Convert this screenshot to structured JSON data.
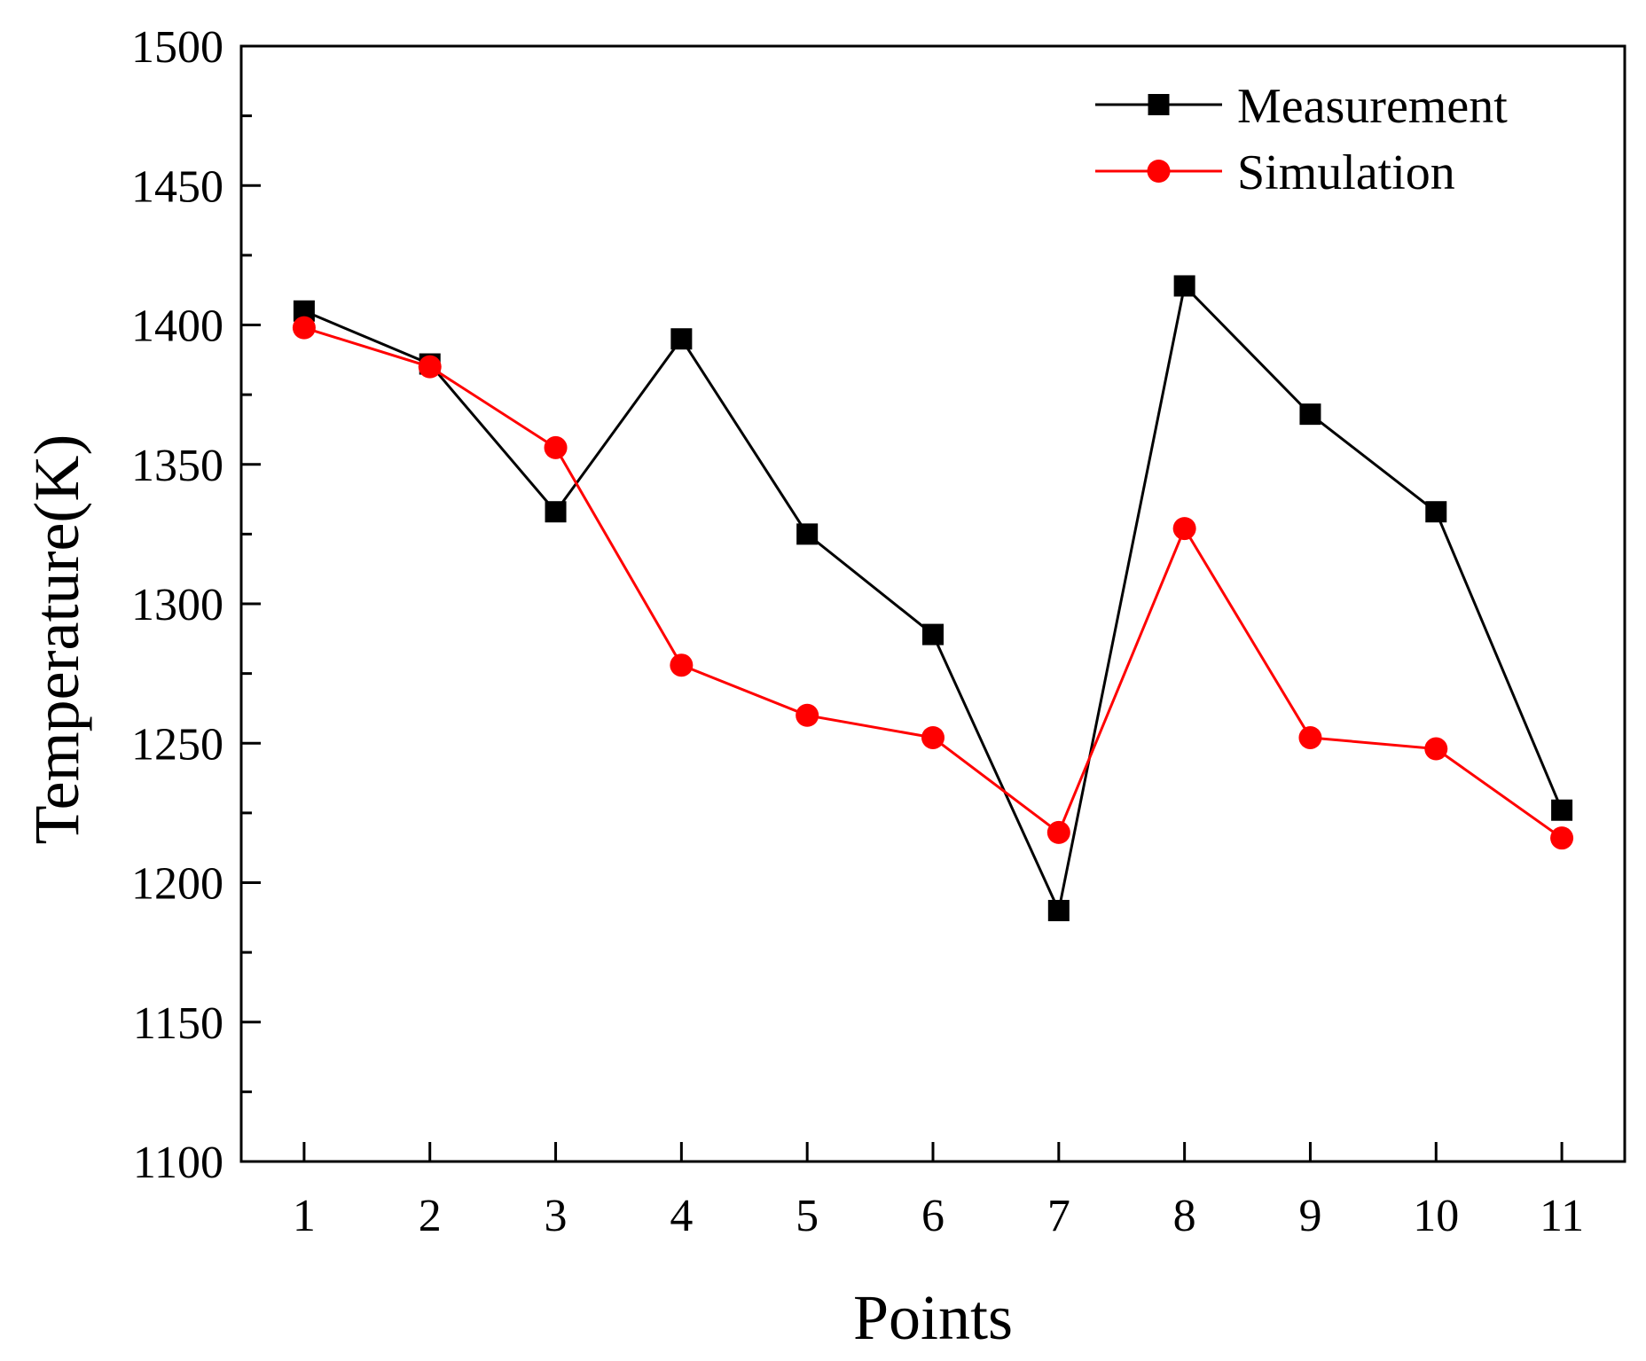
{
  "chart_data": {
    "type": "line",
    "title": "",
    "xlabel": "Points",
    "ylabel": "Temperature(K)",
    "categories": [
      "1",
      "2",
      "3",
      "4",
      "5",
      "6",
      "7",
      "8",
      "9",
      "10",
      "11"
    ],
    "x": [
      1,
      2,
      3,
      4,
      5,
      6,
      7,
      8,
      9,
      10,
      11
    ],
    "xlim": [
      0.5,
      11.5
    ],
    "ylim": [
      1100,
      1500
    ],
    "yticks": [
      1100,
      1150,
      1200,
      1250,
      1300,
      1350,
      1400,
      1450,
      1500
    ],
    "grid": false,
    "legend_position": "top-right",
    "series": [
      {
        "name": "Measurement",
        "color": "#000000",
        "marker": "square",
        "values": [
          1405,
          1386,
          1333,
          1395,
          1325,
          1289,
          1190,
          1414,
          1368,
          1333,
          1226
        ]
      },
      {
        "name": "Simulation",
        "color": "#ff0000",
        "marker": "circle",
        "values": [
          1399,
          1385,
          1356,
          1278,
          1260,
          1252,
          1218,
          1327,
          1252,
          1248,
          1216
        ]
      }
    ]
  }
}
